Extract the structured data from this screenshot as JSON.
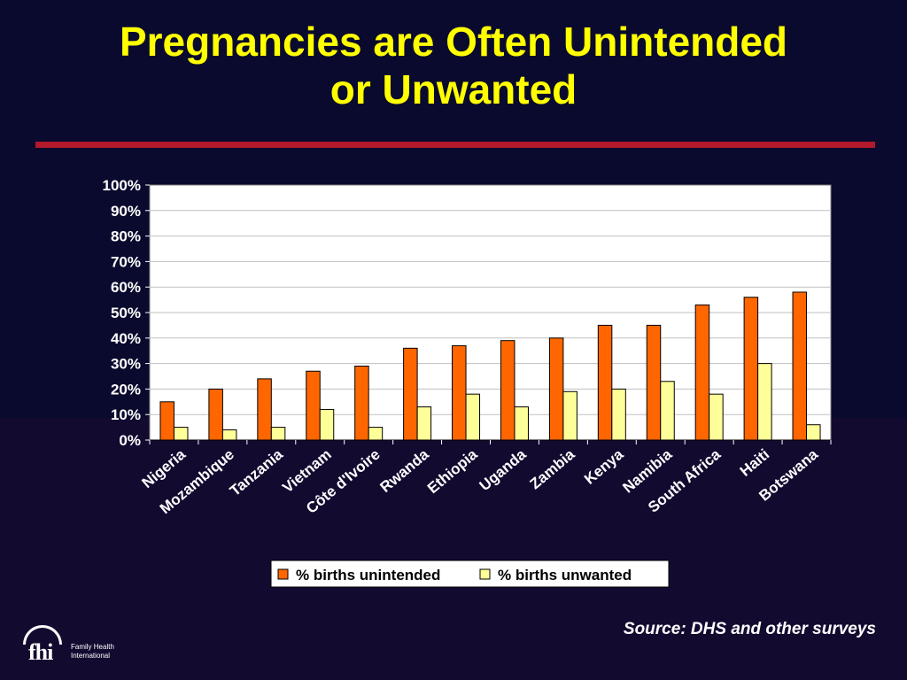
{
  "slide": {
    "title_line1": "Pregnancies are Often Unintended",
    "title_line2": "or Unwanted",
    "source": "Source: DHS and other surveys"
  },
  "logo": {
    "mark": "fhi",
    "line1": "Family Health",
    "line2": "International"
  },
  "colors": {
    "title": "#ffff00",
    "rule": "#b3182b",
    "unintended": "#ff6600",
    "unwanted": "#ffff99"
  },
  "chart_data": {
    "type": "bar",
    "categories": [
      "Nigeria",
      "Mozambique",
      "Tanzania",
      "Vietnam",
      "Côte d'Ivoire",
      "Rwanda",
      "Ethiopia",
      "Uganda",
      "Zambia",
      "Kenya",
      "Namibia",
      "South Africa",
      "Haiti",
      "Botswana"
    ],
    "series": [
      {
        "name": "% births unintended",
        "values": [
          15,
          20,
          24,
          27,
          29,
          36,
          37,
          39,
          40,
          45,
          45,
          53,
          56,
          58
        ]
      },
      {
        "name": "% births unwanted",
        "values": [
          5,
          4,
          5,
          12,
          5,
          13,
          18,
          13,
          19,
          20,
          23,
          18,
          30,
          6
        ]
      }
    ],
    "yticks": [
      "0%",
      "10%",
      "20%",
      "30%",
      "40%",
      "50%",
      "60%",
      "70%",
      "80%",
      "90%",
      "100%"
    ],
    "ylim": [
      0,
      100
    ],
    "grid": true,
    "legend_position": "bottom"
  }
}
